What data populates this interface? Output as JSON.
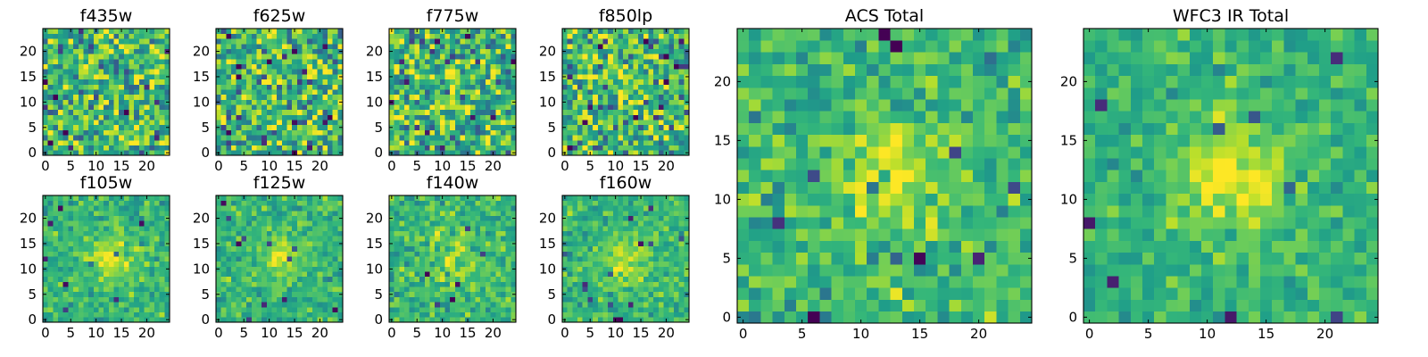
{
  "chart_data": [
    {
      "type": "heatmap",
      "title": "f435w",
      "grid_size": 25,
      "xticks": [
        "0",
        "5",
        "10",
        "15",
        "20"
      ],
      "yticks": [
        "0",
        "5",
        "10",
        "15",
        "20"
      ],
      "blob": 0.05,
      "seed": 11,
      "noise": 1.0
    },
    {
      "type": "heatmap",
      "title": "f625w",
      "grid_size": 25,
      "xticks": [
        "0",
        "5",
        "10",
        "15",
        "20"
      ],
      "yticks": [
        "0",
        "5",
        "10",
        "15",
        "20"
      ],
      "blob": 0.2,
      "seed": 23,
      "noise": 1.0
    },
    {
      "type": "heatmap",
      "title": "f775w",
      "grid_size": 25,
      "xticks": [
        "0",
        "5",
        "10",
        "15",
        "20"
      ],
      "yticks": [
        "0",
        "5",
        "10",
        "15",
        "20"
      ],
      "blob": 0.35,
      "seed": 37,
      "noise": 1.0
    },
    {
      "type": "heatmap",
      "title": "f850lp",
      "grid_size": 25,
      "xticks": [
        "0",
        "5",
        "10",
        "15",
        "20"
      ],
      "yticks": [
        "0",
        "5",
        "10",
        "15",
        "20"
      ],
      "blob": 0.3,
      "seed": 41,
      "noise": 1.0
    },
    {
      "type": "heatmap",
      "title": "f105w",
      "grid_size": 25,
      "xticks": [
        "0",
        "5",
        "10",
        "15",
        "20"
      ],
      "yticks": [
        "0",
        "5",
        "10",
        "15",
        "20"
      ],
      "blob": 0.75,
      "seed": 53,
      "noise": 0.45
    },
    {
      "type": "heatmap",
      "title": "f125w",
      "grid_size": 25,
      "xticks": [
        "0",
        "5",
        "10",
        "15",
        "20"
      ],
      "yticks": [
        "0",
        "5",
        "10",
        "15",
        "20"
      ],
      "blob": 0.7,
      "seed": 67,
      "noise": 0.45
    },
    {
      "type": "heatmap",
      "title": "f140w",
      "grid_size": 25,
      "xticks": [
        "0",
        "5",
        "10",
        "15",
        "20"
      ],
      "yticks": [
        "0",
        "5",
        "10",
        "15",
        "20"
      ],
      "blob": 0.6,
      "seed": 71,
      "noise": 0.5
    },
    {
      "type": "heatmap",
      "title": "f160w",
      "grid_size": 25,
      "xticks": [
        "0",
        "5",
        "10",
        "15",
        "20"
      ],
      "yticks": [
        "0",
        "5",
        "10",
        "15",
        "20"
      ],
      "blob": 0.8,
      "seed": 83,
      "noise": 0.45
    },
    {
      "type": "heatmap",
      "title": "ACS Total",
      "grid_size": 25,
      "xticks": [
        "0",
        "5",
        "10",
        "15",
        "20"
      ],
      "yticks": [
        "0",
        "5",
        "10",
        "15",
        "20"
      ],
      "blob": 0.75,
      "seed": 97,
      "noise": 0.55
    },
    {
      "type": "heatmap",
      "title": "WFC3 IR Total",
      "grid_size": 25,
      "xticks": [
        "0",
        "5",
        "10",
        "15",
        "20"
      ],
      "yticks": [
        "0",
        "5",
        "10",
        "15",
        "20"
      ],
      "blob": 0.9,
      "seed": 101,
      "noise": 0.4
    }
  ]
}
